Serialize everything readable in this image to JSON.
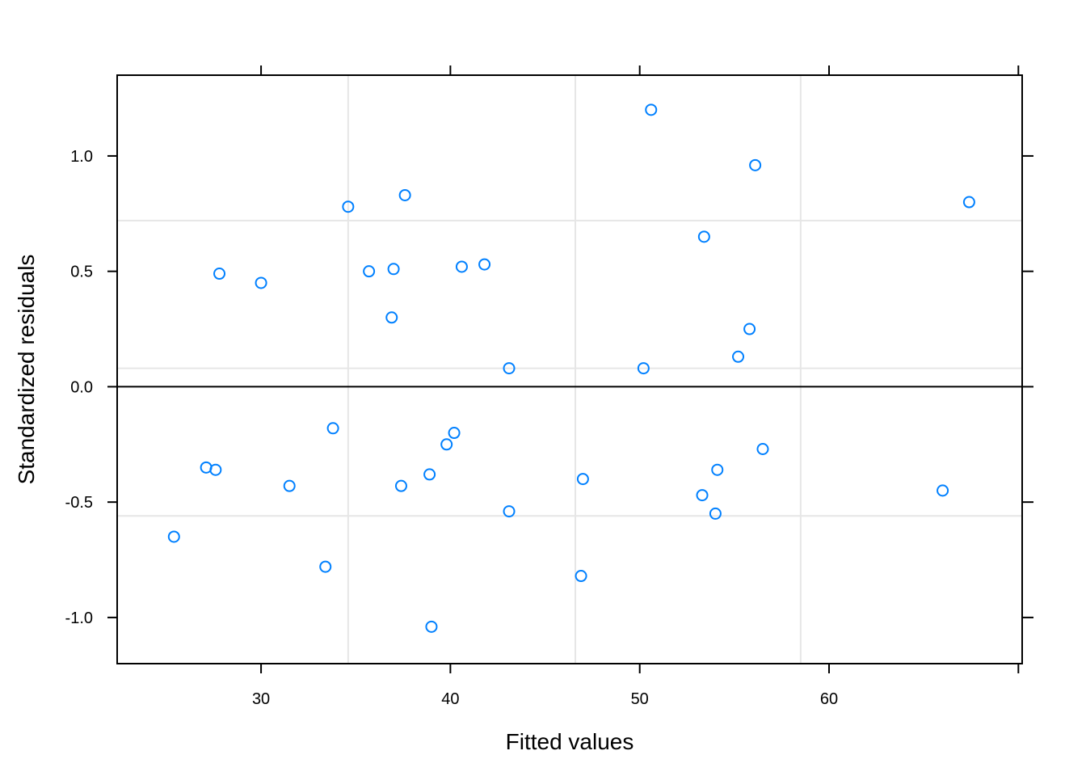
{
  "chart_data": {
    "type": "scatter",
    "title": "",
    "xlabel": "Fitted values",
    "ylabel": "Standardized residuals",
    "xlim": [
      22.4,
      70.2
    ],
    "ylim": [
      -1.2,
      1.35
    ],
    "x_ticks": [
      30,
      40,
      50,
      60
    ],
    "x_tick_labels": [
      "30",
      "40",
      "50",
      "60"
    ],
    "y_ticks": [
      -1.0,
      -0.5,
      0.0,
      0.5,
      1.0
    ],
    "y_tick_labels": [
      "-1.0",
      "-0.5",
      "0.0",
      "0.5",
      "1.0"
    ],
    "grid": true,
    "grid_x": [
      34.6,
      46.6,
      58.5
    ],
    "grid_y": [
      -0.56,
      0.08,
      0.72
    ],
    "reference_line_y": 0.0,
    "point_color": "#0080ff",
    "grid_color": "#e6e6e6",
    "series": [
      {
        "x": [
          50.6,
          56.1,
          67.4,
          34.6,
          37.6,
          53.4,
          27.8,
          30.0,
          35.7,
          37.0,
          40.6,
          41.8,
          36.9,
          55.8,
          55.2,
          43.1,
          50.2,
          33.8,
          40.2,
          39.8,
          27.1,
          27.6,
          31.5,
          37.4,
          38.9,
          47.0,
          43.1,
          53.3,
          54.1,
          54.0,
          56.5,
          66.0,
          25.4,
          33.4,
          46.9,
          39.0
        ],
        "y": [
          1.2,
          0.96,
          0.8,
          0.78,
          0.83,
          0.65,
          0.49,
          0.45,
          0.5,
          0.51,
          0.52,
          0.53,
          0.3,
          0.25,
          0.13,
          0.08,
          0.08,
          -0.18,
          -0.2,
          -0.25,
          -0.35,
          -0.36,
          -0.43,
          -0.43,
          -0.38,
          -0.4,
          -0.54,
          -0.47,
          -0.36,
          -0.55,
          -0.27,
          -0.45,
          -0.65,
          -0.78,
          -0.82,
          -1.04
        ]
      }
    ]
  }
}
